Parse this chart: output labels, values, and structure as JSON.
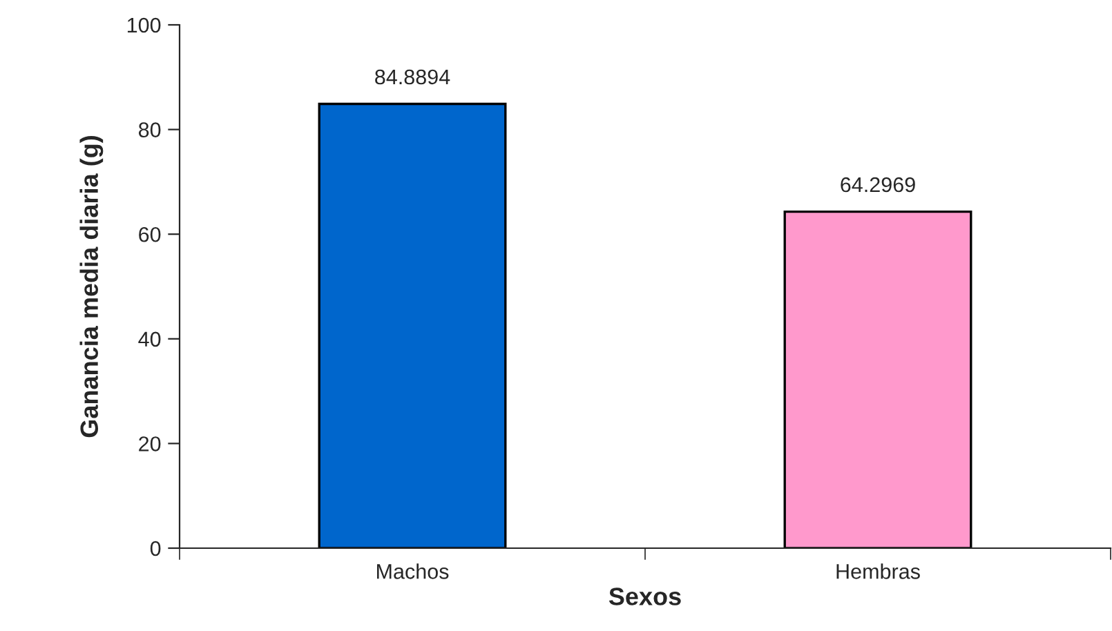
{
  "chart_data": {
    "type": "bar",
    "xlabel": "Sexos",
    "ylabel": "Ganancia media diaria (g)",
    "categories": [
      "Machos",
      "Hembras"
    ],
    "values": [
      84.8894,
      64.2969
    ],
    "colors": [
      "#0066cc",
      "#ff99cc"
    ],
    "ylim": [
      0,
      100
    ],
    "yticks": [
      0,
      20,
      40,
      60,
      80,
      100
    ],
    "data_labels": true,
    "grid": false,
    "legend": false
  }
}
